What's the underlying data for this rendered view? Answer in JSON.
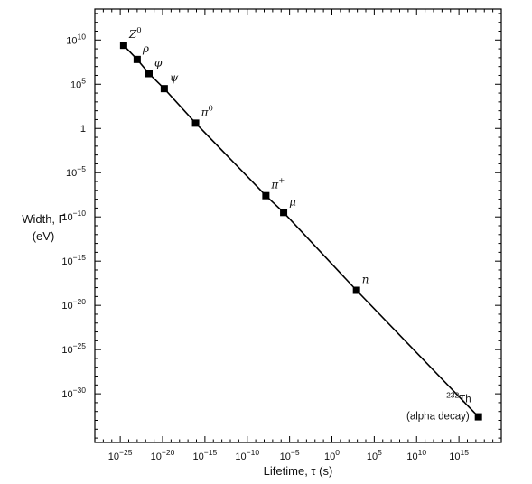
{
  "chart_data": {
    "type": "line",
    "title": "",
    "xlabel": "Lifetime, τ (s)",
    "ylabel_line1": "Width, Γ",
    "ylabel_line2": "(eV)",
    "x_scale": "log",
    "y_scale": "log",
    "xlim_exp": [
      -28,
      20
    ],
    "ylim_exp": [
      -35.5,
      13.5
    ],
    "x_tick_exponents": [
      -25,
      -20,
      -15,
      -10,
      -5,
      0,
      5,
      10,
      15
    ],
    "y_tick_exponents": [
      10,
      5,
      0,
      -5,
      -10,
      -15,
      -20,
      -25,
      -30
    ],
    "grid": false,
    "legend": "none",
    "points": [
      {
        "label": "Z",
        "sup": "0",
        "tau_exp": -24.6,
        "gamma_exp": 9.4
      },
      {
        "label": "ρ",
        "sup": "",
        "tau_exp": -23.0,
        "gamma_exp": 7.8
      },
      {
        "label": "φ",
        "sup": "",
        "tau_exp": -21.6,
        "gamma_exp": 6.2
      },
      {
        "label": "ψ",
        "sup": "",
        "tau_exp": -19.8,
        "gamma_exp": 4.5
      },
      {
        "label": "π",
        "sup": "0",
        "tau_exp": -16.1,
        "gamma_exp": 0.6
      },
      {
        "label": "π",
        "sup": "+",
        "tau_exp": -7.8,
        "gamma_exp": -7.6
      },
      {
        "label": "μ",
        "sup": "",
        "tau_exp": -5.7,
        "gamma_exp": -9.5
      },
      {
        "label": "n",
        "sup": "",
        "tau_exp": 2.9,
        "gamma_exp": -18.3
      },
      {
        "label": "Th",
        "pre_sup": "232",
        "note": "(alpha decay)",
        "tau_exp": 17.3,
        "gamma_exp": -32.6
      }
    ]
  }
}
